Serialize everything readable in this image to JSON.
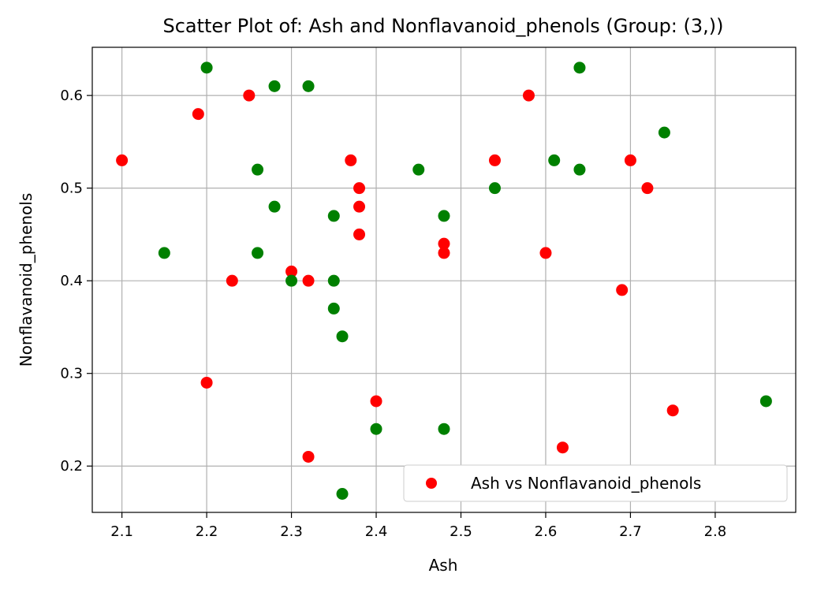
{
  "chart_data": {
    "type": "scatter",
    "title": "Scatter Plot of: Ash and Nonflavanoid_phenols (Group: (3,))",
    "xlabel": "Ash",
    "ylabel": "Nonflavanoid_phenols",
    "xlim": [
      2.065,
      2.895
    ],
    "ylim": [
      0.15,
      0.652
    ],
    "xticks": [
      "2.1",
      "2.2",
      "2.3",
      "2.4",
      "2.5",
      "2.6",
      "2.7",
      "2.8"
    ],
    "yticks": [
      "0.2",
      "0.3",
      "0.4",
      "0.5",
      "0.6"
    ],
    "grid": true,
    "legend_position": "lower-right",
    "series": [
      {
        "name": "Ash vs Nonflavanoid_phenols",
        "color": "#ff0000",
        "x": [
          2.1,
          2.19,
          2.2,
          2.23,
          2.25,
          2.3,
          2.32,
          2.32,
          2.37,
          2.38,
          2.38,
          2.38,
          2.4,
          2.48,
          2.48,
          2.54,
          2.58,
          2.6,
          2.62,
          2.69,
          2.7,
          2.72,
          2.75
        ],
        "y": [
          0.53,
          0.58,
          0.29,
          0.4,
          0.6,
          0.41,
          0.4,
          0.21,
          0.53,
          0.5,
          0.48,
          0.45,
          0.27,
          0.44,
          0.43,
          0.53,
          0.6,
          0.43,
          0.22,
          0.39,
          0.53,
          0.5,
          0.26
        ]
      },
      {
        "color": "#008000",
        "x": [
          2.15,
          2.2,
          2.26,
          2.26,
          2.28,
          2.28,
          2.3,
          2.32,
          2.35,
          2.35,
          2.35,
          2.36,
          2.36,
          2.4,
          2.45,
          2.48,
          2.48,
          2.54,
          2.61,
          2.64,
          2.64,
          2.74,
          2.86
        ],
        "y": [
          0.43,
          0.63,
          0.52,
          0.43,
          0.61,
          0.48,
          0.4,
          0.61,
          0.47,
          0.4,
          0.37,
          0.34,
          0.17,
          0.24,
          0.52,
          0.47,
          0.24,
          0.5,
          0.53,
          0.63,
          0.52,
          0.56,
          0.27
        ]
      }
    ]
  }
}
